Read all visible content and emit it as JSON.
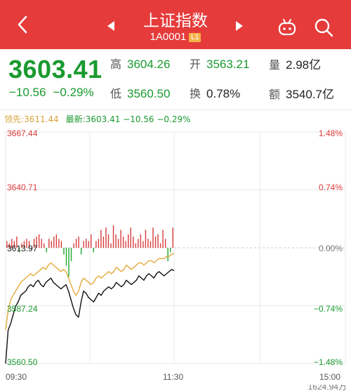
{
  "header": {
    "title": "上证指数",
    "code": "1A0001",
    "badge": "L1",
    "back_icon": "chevron-left-icon",
    "prev_icon": "triangle-left-icon",
    "next_icon": "triangle-right-icon",
    "robot_icon": "robot-icon",
    "search_icon": "search-icon"
  },
  "quote": {
    "price": "3603.41",
    "change": "−10.56",
    "change_pct": "−0.29%",
    "fields": [
      {
        "label": "高",
        "value": "3604.26",
        "color": "green"
      },
      {
        "label": "开",
        "value": "3563.21",
        "color": "green"
      },
      {
        "label": "量",
        "value": "2.98亿",
        "color": "dark"
      },
      {
        "label": "低",
        "value": "3560.50",
        "color": "green"
      },
      {
        "label": "换",
        "value": "0.78%",
        "color": "dark"
      },
      {
        "label": "额",
        "value": "3540.7亿",
        "color": "dark"
      }
    ]
  },
  "legend": {
    "lead": "领先:3611.44",
    "latest": "最新:3603.41  −10.56  −0.29%"
  },
  "chart_data": {
    "type": "line",
    "y_left_ticks": [
      "3667.44",
      "3640.71",
      "3613.97",
      "3587.24",
      "3560.50"
    ],
    "y_right_ticks": [
      "1.48%",
      "0.74%",
      "0.00%",
      "−0.74%",
      "−1.48%"
    ],
    "x_ticks": [
      "09:30",
      "11:30",
      "15:00"
    ],
    "ylim": [
      3560.5,
      3667.44
    ],
    "prev_close": 3613.97,
    "colors": {
      "price": "#111111",
      "lead": "#e3a93a",
      "up": "#d93b3b",
      "down": "#1fa82e",
      "grid": "#e8e8e8",
      "zero": "#cccccc"
    },
    "series": [
      {
        "name": "最新",
        "values": [
          3560.5,
          3576,
          3579,
          3583,
          3587,
          3589,
          3592,
          3593,
          3594,
          3596,
          3597,
          3596,
          3598,
          3599,
          3597,
          3596,
          3598,
          3599,
          3600,
          3598,
          3597,
          3596,
          3595,
          3596,
          3597,
          3594,
          3590,
          3586,
          3583,
          3582,
          3589,
          3594,
          3593,
          3591,
          3590,
          3589,
          3591,
          3593,
          3592,
          3594,
          3595,
          3596,
          3595,
          3596,
          3598,
          3597,
          3596,
          3597,
          3599,
          3598,
          3597,
          3598,
          3599,
          3601,
          3600,
          3599,
          3601,
          3602,
          3601,
          3600,
          3602,
          3603,
          3602,
          3601,
          3602,
          3603,
          3604,
          3603.41
        ]
      },
      {
        "name": "领先",
        "values": [
          3576,
          3585,
          3590,
          3592,
          3594,
          3596,
          3598,
          3599,
          3600,
          3601,
          3602,
          3601,
          3602,
          3603,
          3604,
          3605,
          3604,
          3606,
          3607,
          3606,
          3605,
          3604,
          3603,
          3604,
          3603,
          3600,
          3597,
          3594,
          3592,
          3594,
          3598,
          3600,
          3599,
          3598,
          3597,
          3598,
          3600,
          3601,
          3600,
          3601,
          3602,
          3603,
          3602,
          3603,
          3605,
          3604,
          3603,
          3604,
          3606,
          3605,
          3604,
          3605,
          3606,
          3607,
          3607,
          3606,
          3607,
          3608,
          3608,
          3607,
          3608,
          3609,
          3609,
          3609,
          3610,
          3610,
          3611,
          3611.44
        ]
      }
    ],
    "bars": [
      3,
      2,
      4,
      3,
      5,
      -2,
      2,
      3,
      4,
      3,
      -1,
      4,
      5,
      6,
      4,
      2,
      -2,
      4,
      3,
      5,
      6,
      4,
      3,
      -3,
      -8,
      -13,
      -6,
      2,
      4,
      5,
      -3,
      3,
      4,
      3,
      6,
      -2,
      3,
      4,
      8,
      5,
      9,
      6,
      2,
      10,
      6,
      4,
      8,
      5,
      3,
      6,
      9,
      5,
      2,
      4,
      6,
      3,
      8,
      4,
      3,
      9,
      5,
      6,
      2,
      8,
      4,
      -6,
      -2,
      9
    ]
  },
  "bottom": {
    "value": "1624.94万"
  }
}
